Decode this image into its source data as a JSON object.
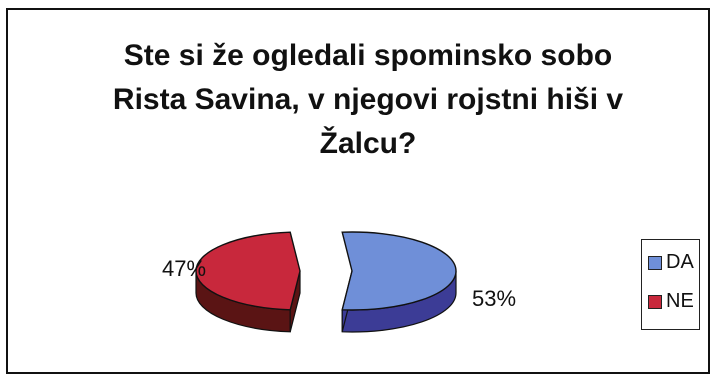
{
  "chart_data": {
    "type": "pie",
    "title": "Ste si že ogledali spominsko sobo Rista Savina, v njegovi rojstni hiši v Žalcu?",
    "title_lines": [
      "Ste si že ogledali spominsko sobo",
      "Rista Savina, v njegovi rojstni hiši v",
      "Žalcu?"
    ],
    "style": "3d-exploded",
    "slices": [
      {
        "label": "DA",
        "value": 53,
        "display": "53%",
        "color": "#6f8fd8",
        "side_color": "#3c3c96"
      },
      {
        "label": "NE",
        "value": 47,
        "display": "47%",
        "color": "#c8283c",
        "side_color": "#5a1414"
      }
    ],
    "legend": {
      "position": "right",
      "entries": [
        {
          "label": "DA",
          "color": "#6f8fd8"
        },
        {
          "label": "NE",
          "color": "#c8283c"
        }
      ]
    }
  }
}
